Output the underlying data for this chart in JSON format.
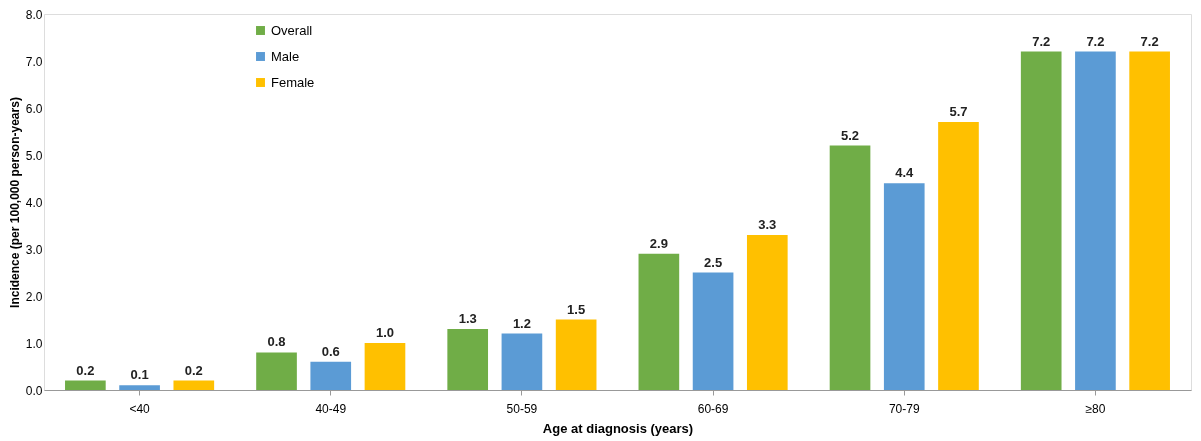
{
  "chart_data": {
    "type": "bar",
    "xlabel": "Age at diagnosis (years)",
    "ylabel": "Incidence (per 100,000 person-years)",
    "categories": [
      "<40",
      "40-49",
      "50-59",
      "60-69",
      "70-79",
      "≥80"
    ],
    "series": [
      {
        "name": "Overall",
        "color": "#70ad47",
        "values": [
          0.2,
          0.8,
          1.3,
          2.9,
          5.2,
          7.2
        ],
        "value_labels": [
          "0.2",
          "0.8",
          "1.3",
          "2.9",
          "5.2",
          "7.2"
        ]
      },
      {
        "name": "Male",
        "color": "#5b9bd5",
        "values": [
          0.1,
          0.6,
          1.2,
          2.5,
          4.4,
          7.2
        ],
        "value_labels": [
          "0.1",
          "0.6",
          "1.2",
          "2.5",
          "4.4",
          "7.2"
        ]
      },
      {
        "name": "Female",
        "color": "#ffc000",
        "values": [
          0.2,
          1.0,
          1.5,
          3.3,
          5.7,
          7.2
        ],
        "value_labels": [
          "0.2",
          "1.0",
          "1.5",
          "3.3",
          "5.7",
          "7.2"
        ]
      }
    ],
    "ylim": [
      0,
      8
    ],
    "yticks": [
      {
        "value": 0,
        "label": "0.0"
      },
      {
        "value": 1,
        "label": "1.0"
      },
      {
        "value": 2,
        "label": "2.0"
      },
      {
        "value": 3,
        "label": "3.0"
      },
      {
        "value": 4,
        "label": "4.0"
      },
      {
        "value": 5,
        "label": "5.0"
      },
      {
        "value": 6,
        "label": "6.0"
      },
      {
        "value": 7,
        "label": "7.0"
      },
      {
        "value": 8,
        "label": "8.0"
      }
    ],
    "legend": "top left",
    "grid": false
  }
}
